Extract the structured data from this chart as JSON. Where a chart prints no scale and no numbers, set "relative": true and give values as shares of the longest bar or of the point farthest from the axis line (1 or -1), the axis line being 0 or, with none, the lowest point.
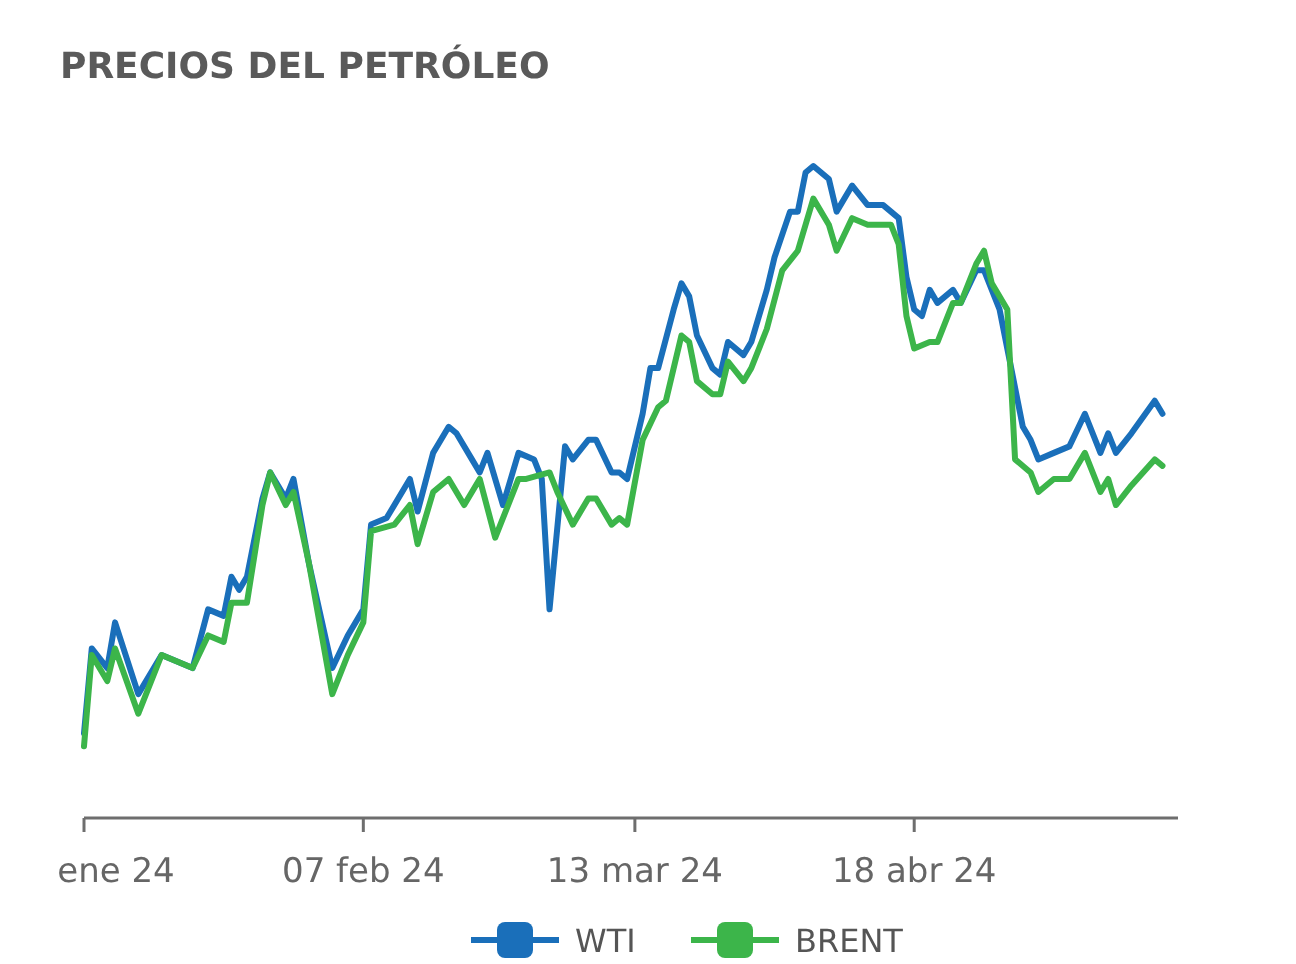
{
  "chart_data": {
    "type": "line",
    "title": "PRECIOS DEL PETRÓLEO",
    "relative": true,
    "legend": "bottom",
    "marker": "none",
    "line_style": "solid",
    "xlim": [
      "2024-01-02",
      "2024-05-22"
    ],
    "xticks": [
      {
        "value": "2024-01-02",
        "label": "ene 24"
      },
      {
        "value": "2024-02-07",
        "label": "07 feb 24"
      },
      {
        "value": "2024-03-13",
        "label": "13 mar 24"
      },
      {
        "value": "2024-04-18",
        "label": "18 abr 24"
      }
    ],
    "series": [
      {
        "name": "WTI",
        "color": "#1a6fba",
        "x": [
          "2024-01-02",
          "2024-01-03",
          "2024-01-05",
          "2024-01-06",
          "2024-01-09",
          "2024-01-12",
          "2024-01-16",
          "2024-01-18",
          "2024-01-20",
          "2024-01-21",
          "2024-01-22",
          "2024-01-23",
          "2024-01-25",
          "2024-01-26",
          "2024-01-28",
          "2024-01-29",
          "2024-01-31",
          "2024-02-03",
          "2024-02-05",
          "2024-02-07",
          "2024-02-08",
          "2024-02-10",
          "2024-02-13",
          "2024-02-14",
          "2024-02-16",
          "2024-02-18",
          "2024-02-19",
          "2024-02-21",
          "2024-02-22",
          "2024-02-23",
          "2024-02-25",
          "2024-02-27",
          "2024-02-29",
          "2024-03-01",
          "2024-03-02",
          "2024-03-04",
          "2024-03-05",
          "2024-03-07",
          "2024-03-08",
          "2024-03-10",
          "2024-03-11",
          "2024-03-12",
          "2024-03-14",
          "2024-03-15",
          "2024-03-16",
          "2024-03-18",
          "2024-03-19",
          "2024-03-20",
          "2024-03-21",
          "2024-03-23",
          "2024-03-24",
          "2024-03-25",
          "2024-03-27",
          "2024-03-28",
          "2024-03-30",
          "2024-03-31",
          "2024-04-02",
          "2024-04-03",
          "2024-04-04",
          "2024-04-05",
          "2024-04-07",
          "2024-04-08",
          "2024-04-10",
          "2024-04-12",
          "2024-04-14",
          "2024-04-16",
          "2024-04-17",
          "2024-04-18",
          "2024-04-19",
          "2024-04-20",
          "2024-04-21",
          "2024-04-23",
          "2024-04-24",
          "2024-04-26",
          "2024-04-27",
          "2024-04-29",
          "2024-04-30",
          "2024-05-02",
          "2024-05-03",
          "2024-05-04",
          "2024-05-06",
          "2024-05-08",
          "2024-05-10",
          "2024-05-12",
          "2024-05-13",
          "2024-05-14",
          "2024-05-16",
          "2024-05-19",
          "2024-05-20"
        ],
        "values": [
          0.13,
          0.26,
          0.23,
          0.3,
          0.19,
          0.25,
          0.23,
          0.32,
          0.31,
          0.37,
          0.35,
          0.37,
          0.49,
          0.53,
          0.49,
          0.52,
          0.39,
          0.23,
          0.28,
          0.32,
          0.45,
          0.46,
          0.52,
          0.47,
          0.56,
          0.6,
          0.59,
          0.55,
          0.53,
          0.56,
          0.48,
          0.56,
          0.55,
          0.52,
          0.32,
          0.57,
          0.55,
          0.58,
          0.58,
          0.53,
          0.53,
          0.52,
          0.62,
          0.69,
          0.69,
          0.78,
          0.82,
          0.8,
          0.74,
          0.69,
          0.68,
          0.73,
          0.71,
          0.73,
          0.81,
          0.86,
          0.93,
          0.93,
          0.99,
          1.0,
          0.98,
          0.93,
          0.97,
          0.94,
          0.94,
          0.92,
          0.83,
          0.78,
          0.77,
          0.81,
          0.79,
          0.81,
          0.79,
          0.84,
          0.84,
          0.78,
          0.72,
          0.6,
          0.58,
          0.55,
          0.56,
          0.57,
          0.62,
          0.56,
          0.59,
          0.56,
          0.59,
          0.64,
          0.62
        ]
      },
      {
        "name": "BRENT",
        "color": "#3cb54a",
        "x": [
          "2024-01-02",
          "2024-01-03",
          "2024-01-05",
          "2024-01-06",
          "2024-01-09",
          "2024-01-12",
          "2024-01-16",
          "2024-01-18",
          "2024-01-20",
          "2024-01-21",
          "2024-01-23",
          "2024-01-25",
          "2024-01-26",
          "2024-01-28",
          "2024-01-29",
          "2024-01-31",
          "2024-02-03",
          "2024-02-05",
          "2024-02-07",
          "2024-02-08",
          "2024-02-11",
          "2024-02-13",
          "2024-02-14",
          "2024-02-16",
          "2024-02-18",
          "2024-02-20",
          "2024-02-22",
          "2024-02-24",
          "2024-02-27",
          "2024-02-28",
          "2024-03-02",
          "2024-03-03",
          "2024-03-05",
          "2024-03-07",
          "2024-03-08",
          "2024-03-10",
          "2024-03-11",
          "2024-03-12",
          "2024-03-14",
          "2024-03-16",
          "2024-03-17",
          "2024-03-19",
          "2024-03-20",
          "2024-03-21",
          "2024-03-23",
          "2024-03-24",
          "2024-03-25",
          "2024-03-27",
          "2024-03-28",
          "2024-03-30",
          "2024-04-01",
          "2024-04-03",
          "2024-04-05",
          "2024-04-07",
          "2024-04-08",
          "2024-04-10",
          "2024-04-12",
          "2024-04-15",
          "2024-04-16",
          "2024-04-17",
          "2024-04-18",
          "2024-04-20",
          "2024-04-21",
          "2024-04-23",
          "2024-04-24",
          "2024-04-26",
          "2024-04-27",
          "2024-04-28",
          "2024-04-30",
          "2024-05-01",
          "2024-05-03",
          "2024-05-04",
          "2024-05-06",
          "2024-05-08",
          "2024-05-10",
          "2024-05-12",
          "2024-05-13",
          "2024-05-14",
          "2024-05-16",
          "2024-05-19",
          "2024-05-20"
        ],
        "values": [
          0.11,
          0.25,
          0.21,
          0.26,
          0.16,
          0.25,
          0.23,
          0.28,
          0.27,
          0.33,
          0.33,
          0.48,
          0.53,
          0.48,
          0.5,
          0.39,
          0.19,
          0.25,
          0.3,
          0.44,
          0.45,
          0.48,
          0.42,
          0.5,
          0.52,
          0.48,
          0.52,
          0.43,
          0.52,
          0.52,
          0.53,
          0.5,
          0.45,
          0.49,
          0.49,
          0.45,
          0.46,
          0.45,
          0.58,
          0.63,
          0.64,
          0.74,
          0.73,
          0.67,
          0.65,
          0.65,
          0.7,
          0.67,
          0.69,
          0.75,
          0.84,
          0.87,
          0.95,
          0.91,
          0.87,
          0.92,
          0.91,
          0.91,
          0.88,
          0.77,
          0.72,
          0.73,
          0.73,
          0.79,
          0.79,
          0.85,
          0.87,
          0.82,
          0.78,
          0.55,
          0.53,
          0.5,
          0.52,
          0.52,
          0.56,
          0.5,
          0.52,
          0.48,
          0.51,
          0.55,
          0.54
        ]
      }
    ]
  }
}
